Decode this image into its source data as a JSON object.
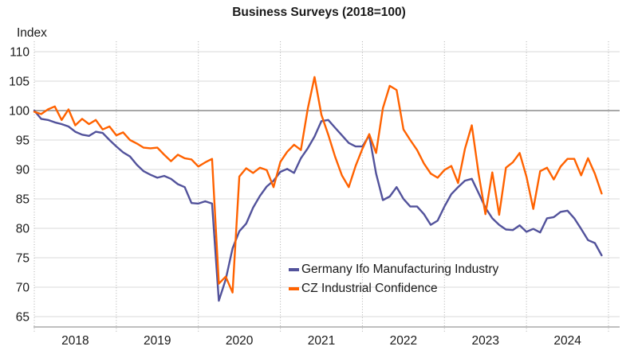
{
  "header": {
    "title": "Business Surveys (2018=100)"
  },
  "axes": {
    "y_unit_label": "Index",
    "y_tick_labels": [
      "65",
      "70",
      "75",
      "80",
      "85",
      "90",
      "95",
      "100",
      "105",
      "110"
    ],
    "x_tick_labels": [
      "2018",
      "2019",
      "2020",
      "2021",
      "2022",
      "2023",
      "2024"
    ]
  },
  "colors": {
    "germany_line": "#52529B",
    "cz_line": "#FF6200",
    "grid": "#D9D9D9",
    "reference_line": "#737373",
    "axis_line": "#BFBFBF",
    "vertical_grid": "#ADADAD",
    "text": "#1A1A1A"
  },
  "chart_data": {
    "type": "line",
    "title": "Business Surveys (2018=100)",
    "ylabel": "Index",
    "xlabel": "",
    "frequency": "monthly",
    "x_start": "2018-01",
    "x_end": "2024-12",
    "x_tick_labels": [
      "2018",
      "2019",
      "2020",
      "2021",
      "2022",
      "2023",
      "2024"
    ],
    "y_ticks": [
      65,
      70,
      75,
      80,
      85,
      90,
      95,
      100,
      105,
      110
    ],
    "ylim": [
      63,
      112
    ],
    "reference_line_y": 100,
    "grid": true,
    "legend_position": "inside-lower-center",
    "series": [
      {
        "name": "Germany Ifo Manufacturing Industry",
        "color": "#52529B",
        "values": [
          100.0,
          98.6,
          98.4,
          98.0,
          97.7,
          97.3,
          96.4,
          95.9,
          95.7,
          96.4,
          96.2,
          95.0,
          93.9,
          92.9,
          92.2,
          90.8,
          89.7,
          89.1,
          88.6,
          88.9,
          88.4,
          87.5,
          87.0,
          84.3,
          84.2,
          84.6,
          84.2,
          67.7,
          71.3,
          76.6,
          79.5,
          80.8,
          83.5,
          85.5,
          87.1,
          88.1,
          89.6,
          90.1,
          89.4,
          91.9,
          93.6,
          95.6,
          98.2,
          98.4,
          97.1,
          95.8,
          94.5,
          93.9,
          93.9,
          95.8,
          89.3,
          84.8,
          85.4,
          87.0,
          85.0,
          83.7,
          83.7,
          82.4,
          80.6,
          81.3,
          83.7,
          85.8,
          87.0,
          88.1,
          88.4,
          86.0,
          83.5,
          81.7,
          80.6,
          79.8,
          79.7,
          80.5,
          79.4,
          79.9,
          79.3,
          81.7,
          81.9,
          82.8,
          83.0,
          81.7,
          79.9,
          78.0,
          77.5,
          75.4
        ]
      },
      {
        "name": "CZ Industrial Confidence",
        "color": "#FF6200",
        "values": [
          99.8,
          99.4,
          100.2,
          100.7,
          98.4,
          100.2,
          97.5,
          98.6,
          97.7,
          98.4,
          96.8,
          97.3,
          95.8,
          96.3,
          95.0,
          94.4,
          93.7,
          93.6,
          93.7,
          92.5,
          91.4,
          92.5,
          91.9,
          91.7,
          90.5,
          91.2,
          91.8,
          70.6,
          71.8,
          69.1,
          88.8,
          90.2,
          89.4,
          90.3,
          89.9,
          87.0,
          91.3,
          93.0,
          94.2,
          93.3,
          100.3,
          105.7,
          99.3,
          95.9,
          92.2,
          89.0,
          87.0,
          90.6,
          93.5,
          96.0,
          92.8,
          100.4,
          104.2,
          103.5,
          96.8,
          95.0,
          93.3,
          91.0,
          89.3,
          88.6,
          89.9,
          90.6,
          87.7,
          93.5,
          97.5,
          89.3,
          82.4,
          89.5,
          82.3,
          90.3,
          91.2,
          92.8,
          88.8,
          83.3,
          89.7,
          90.3,
          88.3,
          90.5,
          91.8,
          91.8,
          89.0,
          91.9,
          89.3,
          85.9
        ]
      }
    ]
  }
}
